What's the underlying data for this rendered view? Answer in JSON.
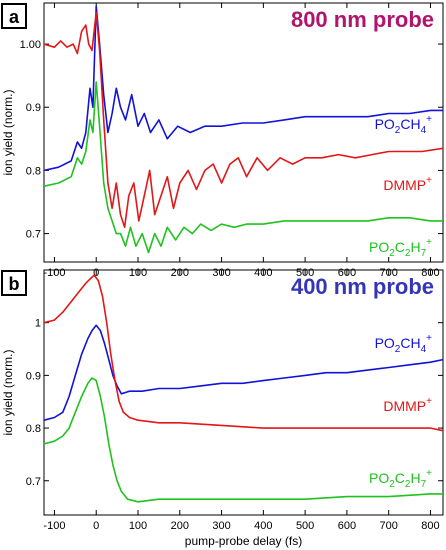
{
  "colors": {
    "blue": "#1212d8",
    "red": "#e01818",
    "green": "#1fc21f",
    "title_a": "#b0146c",
    "title_b": "#3535b8"
  },
  "chart_data": [
    {
      "type": "line",
      "panel_label": "a",
      "title": "800 nm probe",
      "title_color": "#b0146c",
      "ylabel": "ion yield (norm.)",
      "xlabel": "",
      "xlim": [
        -125,
        830
      ],
      "ylim": [
        0.655,
        1.065
      ],
      "x_ticks": [
        -100,
        0,
        100,
        200,
        300,
        400,
        500,
        600,
        700,
        800
      ],
      "y_ticks": [
        0.7,
        0.8,
        0.9,
        1.0
      ],
      "y_tick_labels": [
        "0.7",
        "0.8",
        "0.9",
        "1.00"
      ],
      "grid": false,
      "series": [
        {
          "name": "PO2CH4+",
          "label_parts": [
            [
              "PO",
              ""
            ],
            [
              "2",
              "sub"
            ],
            [
              "CH",
              ""
            ],
            [
              "4",
              "sub"
            ],
            [
              "+",
              "sup"
            ]
          ],
          "color": "#1212d8",
          "points": [
            [
              -125,
              0.8
            ],
            [
              -90,
              0.805
            ],
            [
              -60,
              0.815
            ],
            [
              -45,
              0.845
            ],
            [
              -35,
              0.835
            ],
            [
              -25,
              0.86
            ],
            [
              -15,
              0.93
            ],
            [
              -8,
              0.9
            ],
            [
              0,
              1.06
            ],
            [
              8,
              1.0
            ],
            [
              18,
              0.92
            ],
            [
              28,
              0.86
            ],
            [
              38,
              0.89
            ],
            [
              48,
              0.93
            ],
            [
              58,
              0.9
            ],
            [
              70,
              0.88
            ],
            [
              85,
              0.92
            ],
            [
              100,
              0.87
            ],
            [
              115,
              0.89
            ],
            [
              130,
              0.86
            ],
            [
              150,
              0.88
            ],
            [
              170,
              0.85
            ],
            [
              195,
              0.87
            ],
            [
              225,
              0.86
            ],
            [
              260,
              0.87
            ],
            [
              300,
              0.87
            ],
            [
              350,
              0.875
            ],
            [
              400,
              0.875
            ],
            [
              450,
              0.88
            ],
            [
              500,
              0.885
            ],
            [
              550,
              0.885
            ],
            [
              600,
              0.885
            ],
            [
              650,
              0.885
            ],
            [
              700,
              0.89
            ],
            [
              750,
              0.89
            ],
            [
              800,
              0.895
            ],
            [
              830,
              0.895
            ]
          ]
        },
        {
          "name": "DMMP+",
          "label_parts": [
            [
              "DMMP",
              ""
            ],
            [
              "+",
              "sup"
            ]
          ],
          "color": "#e01818",
          "points": [
            [
              -125,
              1.0
            ],
            [
              -100,
              0.995
            ],
            [
              -85,
              1.005
            ],
            [
              -70,
              0.995
            ],
            [
              -55,
              1.0
            ],
            [
              -45,
              0.985
            ],
            [
              -35,
              1.02
            ],
            [
              -25,
              1.03
            ],
            [
              -18,
              1.0
            ],
            [
              -10,
              0.99
            ],
            [
              0,
              1.05
            ],
            [
              8,
              0.99
            ],
            [
              18,
              0.88
            ],
            [
              28,
              0.78
            ],
            [
              38,
              0.74
            ],
            [
              48,
              0.78
            ],
            [
              58,
              0.73
            ],
            [
              68,
              0.71
            ],
            [
              78,
              0.76
            ],
            [
              90,
              0.78
            ],
            [
              102,
              0.72
            ],
            [
              115,
              0.76
            ],
            [
              128,
              0.8
            ],
            [
              140,
              0.73
            ],
            [
              155,
              0.76
            ],
            [
              170,
              0.79
            ],
            [
              185,
              0.74
            ],
            [
              200,
              0.78
            ],
            [
              220,
              0.8
            ],
            [
              240,
              0.77
            ],
            [
              260,
              0.8
            ],
            [
              280,
              0.81
            ],
            [
              300,
              0.78
            ],
            [
              320,
              0.81
            ],
            [
              340,
              0.82
            ],
            [
              360,
              0.79
            ],
            [
              385,
              0.82
            ],
            [
              410,
              0.8
            ],
            [
              440,
              0.82
            ],
            [
              470,
              0.81
            ],
            [
              500,
              0.82
            ],
            [
              540,
              0.82
            ],
            [
              580,
              0.825
            ],
            [
              620,
              0.82
            ],
            [
              660,
              0.825
            ],
            [
              700,
              0.83
            ],
            [
              740,
              0.83
            ],
            [
              780,
              0.83
            ],
            [
              830,
              0.835
            ]
          ]
        },
        {
          "name": "PO2C2H7+",
          "label_parts": [
            [
              "PO",
              ""
            ],
            [
              "2",
              "sub"
            ],
            [
              "C",
              ""
            ],
            [
              "2",
              "sub"
            ],
            [
              "H",
              ""
            ],
            [
              "7",
              "sub"
            ],
            [
              "+",
              "sup"
            ]
          ],
          "color": "#1fc21f",
          "points": [
            [
              -125,
              0.775
            ],
            [
              -90,
              0.78
            ],
            [
              -60,
              0.79
            ],
            [
              -45,
              0.82
            ],
            [
              -35,
              0.81
            ],
            [
              -25,
              0.83
            ],
            [
              -15,
              0.88
            ],
            [
              -8,
              0.86
            ],
            [
              0,
              0.94
            ],
            [
              8,
              0.87
            ],
            [
              18,
              0.78
            ],
            [
              28,
              0.74
            ],
            [
              38,
              0.72
            ],
            [
              48,
              0.7
            ],
            [
              58,
              0.7
            ],
            [
              70,
              0.68
            ],
            [
              82,
              0.71
            ],
            [
              95,
              0.68
            ],
            [
              110,
              0.7
            ],
            [
              125,
              0.67
            ],
            [
              140,
              0.7
            ],
            [
              155,
              0.68
            ],
            [
              170,
              0.71
            ],
            [
              190,
              0.69
            ],
            [
              210,
              0.71
            ],
            [
              230,
              0.7
            ],
            [
              250,
              0.715
            ],
            [
              275,
              0.705
            ],
            [
              300,
              0.715
            ],
            [
              330,
              0.71
            ],
            [
              360,
              0.715
            ],
            [
              400,
              0.715
            ],
            [
              450,
              0.72
            ],
            [
              500,
              0.72
            ],
            [
              550,
              0.72
            ],
            [
              600,
              0.72
            ],
            [
              650,
              0.72
            ],
            [
              700,
              0.725
            ],
            [
              750,
              0.725
            ],
            [
              800,
              0.72
            ],
            [
              830,
              0.72
            ]
          ]
        }
      ]
    },
    {
      "type": "line",
      "panel_label": "b",
      "title": "400 nm probe",
      "title_color": "#3535b8",
      "ylabel": "ion yield (norm.)",
      "xlabel": "pump-probe delay (fs)",
      "xlim": [
        -125,
        830
      ],
      "ylim": [
        0.635,
        1.1
      ],
      "x_ticks": [
        -100,
        0,
        100,
        200,
        300,
        400,
        500,
        600,
        700,
        800
      ],
      "y_ticks": [
        0.7,
        0.8,
        0.9,
        1.0
      ],
      "y_tick_labels": [
        "0.7",
        "0.8",
        "0.9",
        "1"
      ],
      "grid": false,
      "series": [
        {
          "name": "PO2CH4+",
          "label_parts": [
            [
              "PO",
              ""
            ],
            [
              "2",
              "sub"
            ],
            [
              "CH",
              ""
            ],
            [
              "4",
              "sub"
            ],
            [
              "+",
              "sup"
            ]
          ],
          "color": "#1212d8",
          "points": [
            [
              -125,
              0.815
            ],
            [
              -100,
              0.82
            ],
            [
              -80,
              0.83
            ],
            [
              -65,
              0.86
            ],
            [
              -50,
              0.9
            ],
            [
              -35,
              0.94
            ],
            [
              -20,
              0.97
            ],
            [
              -10,
              0.985
            ],
            [
              0,
              0.995
            ],
            [
              10,
              0.985
            ],
            [
              20,
              0.96
            ],
            [
              30,
              0.93
            ],
            [
              40,
              0.9
            ],
            [
              50,
              0.88
            ],
            [
              60,
              0.865
            ],
            [
              80,
              0.87
            ],
            [
              110,
              0.87
            ],
            [
              150,
              0.875
            ],
            [
              200,
              0.875
            ],
            [
              250,
              0.88
            ],
            [
              300,
              0.885
            ],
            [
              350,
              0.885
            ],
            [
              400,
              0.89
            ],
            [
              450,
              0.895
            ],
            [
              500,
              0.9
            ],
            [
              550,
              0.905
            ],
            [
              600,
              0.905
            ],
            [
              650,
              0.91
            ],
            [
              700,
              0.915
            ],
            [
              750,
              0.92
            ],
            [
              800,
              0.925
            ],
            [
              830,
              0.93
            ]
          ]
        },
        {
          "name": "DMMP+",
          "label_parts": [
            [
              "DMMP",
              ""
            ],
            [
              "+",
              "sup"
            ]
          ],
          "color": "#e01818",
          "points": [
            [
              -125,
              1.0
            ],
            [
              -100,
              1.005
            ],
            [
              -80,
              1.02
            ],
            [
              -60,
              1.04
            ],
            [
              -40,
              1.06
            ],
            [
              -25,
              1.075
            ],
            [
              -12,
              1.085
            ],
            [
              -5,
              1.09
            ],
            [
              5,
              1.08
            ],
            [
              15,
              1.05
            ],
            [
              25,
              1.0
            ],
            [
              35,
              0.94
            ],
            [
              45,
              0.89
            ],
            [
              55,
              0.85
            ],
            [
              65,
              0.83
            ],
            [
              80,
              0.82
            ],
            [
              100,
              0.815
            ],
            [
              150,
              0.81
            ],
            [
              200,
              0.81
            ],
            [
              300,
              0.805
            ],
            [
              400,
              0.8
            ],
            [
              500,
              0.8
            ],
            [
              600,
              0.8
            ],
            [
              700,
              0.8
            ],
            [
              800,
              0.8
            ],
            [
              830,
              0.795
            ]
          ]
        },
        {
          "name": "PO2C2H7+",
          "label_parts": [
            [
              "PO",
              ""
            ],
            [
              "2",
              "sub"
            ],
            [
              "C",
              ""
            ],
            [
              "2",
              "sub"
            ],
            [
              "H",
              ""
            ],
            [
              "7",
              "sub"
            ],
            [
              "+",
              "sup"
            ]
          ],
          "color": "#1fc21f",
          "points": [
            [
              -125,
              0.77
            ],
            [
              -100,
              0.775
            ],
            [
              -80,
              0.785
            ],
            [
              -65,
              0.8
            ],
            [
              -50,
              0.83
            ],
            [
              -35,
              0.86
            ],
            [
              -20,
              0.885
            ],
            [
              -10,
              0.895
            ],
            [
              0,
              0.89
            ],
            [
              10,
              0.86
            ],
            [
              20,
              0.82
            ],
            [
              30,
              0.77
            ],
            [
              40,
              0.73
            ],
            [
              50,
              0.7
            ],
            [
              60,
              0.68
            ],
            [
              75,
              0.665
            ],
            [
              100,
              0.66
            ],
            [
              150,
              0.665
            ],
            [
              200,
              0.665
            ],
            [
              300,
              0.665
            ],
            [
              400,
              0.665
            ],
            [
              500,
              0.665
            ],
            [
              600,
              0.67
            ],
            [
              700,
              0.67
            ],
            [
              800,
              0.675
            ],
            [
              830,
              0.675
            ]
          ]
        }
      ]
    }
  ]
}
